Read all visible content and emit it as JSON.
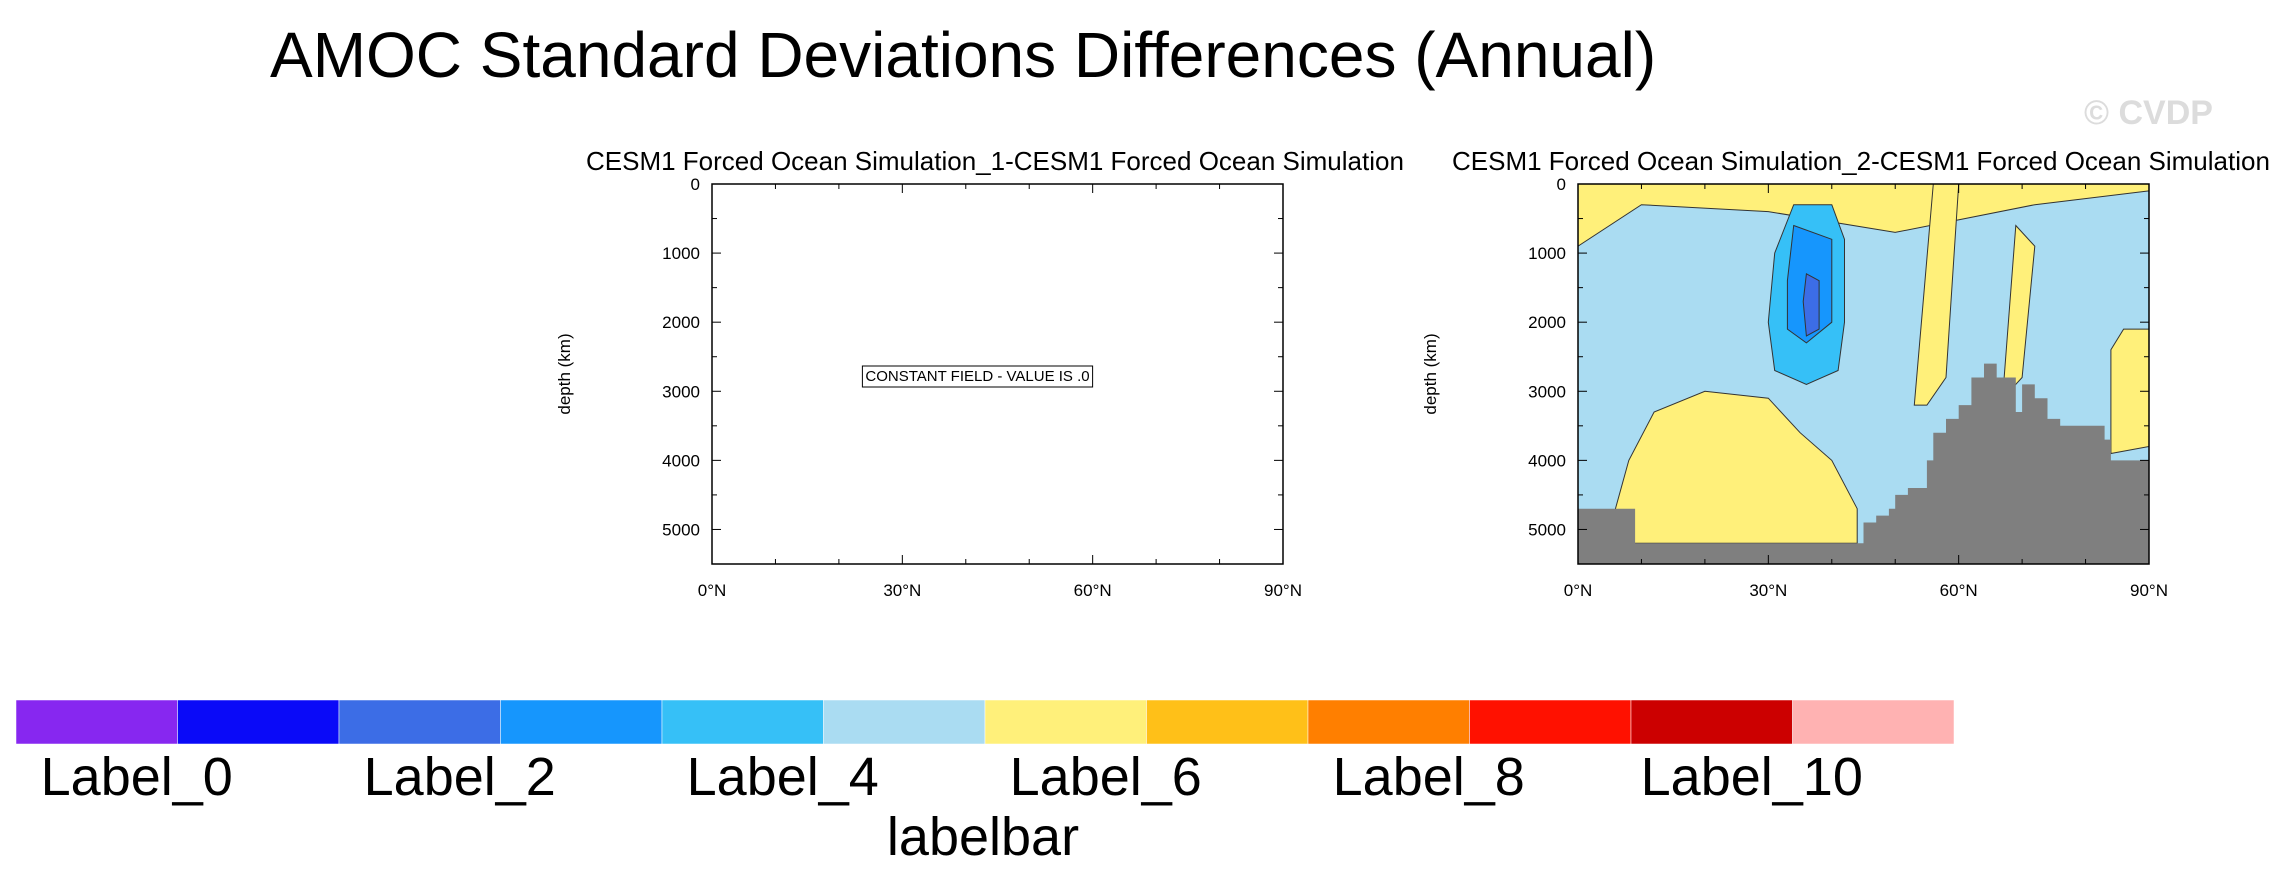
{
  "title": "AMOC Standard Deviations Differences (Annual)",
  "watermark": "© CVDP",
  "chart_data": [
    {
      "type": "contour",
      "title": "CESM1 Forced Ocean Simulation_1-CESM1 Forced Ocean Simulation",
      "ylabel": "depth (km)",
      "xlabel": "",
      "xlim": [
        0,
        90
      ],
      "ylim": [
        5500,
        0
      ],
      "xticks": [
        0,
        30,
        60,
        90
      ],
      "xticklabels": [
        "0°N",
        "30°N",
        "60°N",
        "90°N"
      ],
      "yticks": [
        0,
        1000,
        2000,
        3000,
        4000,
        5000
      ],
      "yticklabels": [
        "0",
        "1000",
        "2000",
        "3000",
        "4000",
        "5000"
      ],
      "annotation": "CONSTANT FIELD - VALUE IS .0"
    },
    {
      "type": "contour",
      "title": "CESM1 Forced Ocean Simulation_2-CESM1 Forced Ocean Simulation",
      "ylabel": "depth (km)",
      "xlabel": "",
      "xlim": [
        0,
        90
      ],
      "ylim": [
        5500,
        0
      ],
      "xticks": [
        0,
        30,
        60,
        90
      ],
      "xticklabels": [
        "0°N",
        "30°N",
        "60°N",
        "90°N"
      ],
      "yticks": [
        0,
        1000,
        2000,
        3000,
        4000,
        5000
      ],
      "yticklabels": [
        "0",
        "1000",
        "2000",
        "3000",
        "4000",
        "5000"
      ],
      "background_level": 5,
      "regions": [
        {
          "level": 6,
          "name": "top band",
          "points": [
            [
              0,
              0
            ],
            [
              90,
              0
            ],
            [
              90,
              100
            ],
            [
              72,
              300
            ],
            [
              50,
              700
            ],
            [
              30,
              400
            ],
            [
              10,
              300
            ],
            [
              0,
              900
            ]
          ]
        },
        {
          "level": 6,
          "name": "deep tongue",
          "points": [
            [
              5,
              5000
            ],
            [
              8,
              4000
            ],
            [
              12,
              3300
            ],
            [
              20,
              3000
            ],
            [
              30,
              3100
            ],
            [
              35,
              3600
            ],
            [
              40,
              4000
            ],
            [
              44,
              4700
            ],
            [
              44,
              5200
            ],
            [
              5,
              5200
            ]
          ]
        },
        {
          "level": 6,
          "name": "mid-lat strip",
          "points": [
            [
              56,
              0
            ],
            [
              60,
              0
            ],
            [
              58,
              2800
            ],
            [
              55,
              3200
            ],
            [
              53,
              3200
            ]
          ]
        },
        {
          "level": 6,
          "name": "high-lat strip",
          "points": [
            [
              69,
              600
            ],
            [
              72,
              900
            ],
            [
              70,
              2800
            ],
            [
              68,
              3000
            ],
            [
              67,
              3000
            ]
          ]
        },
        {
          "level": 6,
          "name": "polar strip",
          "points": [
            [
              86,
              2100
            ],
            [
              90,
              2100
            ],
            [
              90,
              3800
            ],
            [
              84,
              3900
            ],
            [
              84,
              2400
            ]
          ]
        },
        {
          "level": 4,
          "name": "blue core outer",
          "points": [
            [
              34,
              300
            ],
            [
              40,
              300
            ],
            [
              42,
              800
            ],
            [
              42,
              2000
            ],
            [
              41,
              2700
            ],
            [
              36,
              2900
            ],
            [
              31,
              2700
            ],
            [
              30,
              2000
            ],
            [
              31,
              1000
            ]
          ]
        },
        {
          "level": 3,
          "name": "blue core mid",
          "points": [
            [
              34,
              600
            ],
            [
              40,
              800
            ],
            [
              40,
              2000
            ],
            [
              36,
              2300
            ],
            [
              33,
              2100
            ],
            [
              33,
              1400
            ]
          ]
        },
        {
          "level": 2,
          "name": "blue core inner",
          "points": [
            [
              36,
              1300
            ],
            [
              38,
              1400
            ],
            [
              38,
              2100
            ],
            [
              36,
              2200
            ],
            [
              35.5,
              1700
            ]
          ]
        }
      ],
      "bathymetry": [
        [
          0,
          4700
        ],
        [
          9,
          4700
        ],
        [
          9,
          5200
        ],
        [
          45,
          5200
        ],
        [
          45,
          4900
        ],
        [
          47,
          4900
        ],
        [
          47,
          4800
        ],
        [
          49,
          4800
        ],
        [
          49,
          4700
        ],
        [
          50,
          4700
        ],
        [
          50,
          4500
        ],
        [
          52,
          4500
        ],
        [
          52,
          4400
        ],
        [
          55,
          4400
        ],
        [
          55,
          4000
        ],
        [
          56,
          4000
        ],
        [
          56,
          3600
        ],
        [
          58,
          3600
        ],
        [
          58,
          3400
        ],
        [
          60,
          3400
        ],
        [
          60,
          3200
        ],
        [
          62,
          3200
        ],
        [
          62,
          2800
        ],
        [
          64,
          2800
        ],
        [
          64,
          2600
        ],
        [
          66,
          2600
        ],
        [
          66,
          2800
        ],
        [
          69,
          2800
        ],
        [
          69,
          3300
        ],
        [
          70,
          3300
        ],
        [
          70,
          2900
        ],
        [
          72,
          2900
        ],
        [
          72,
          3100
        ],
        [
          74,
          3100
        ],
        [
          74,
          3400
        ],
        [
          76,
          3400
        ],
        [
          76,
          3500
        ],
        [
          83,
          3500
        ],
        [
          83,
          3700
        ],
        [
          84,
          3700
        ],
        [
          84,
          4000
        ],
        [
          86,
          4000
        ],
        [
          86,
          4000
        ],
        [
          90,
          4000
        ]
      ],
      "bathymetry_color": "#7f7f7f"
    }
  ],
  "labelbar": {
    "title": "labelbar",
    "colors": [
      "#8727f0",
      "#0a0af8",
      "#3c6de6",
      "#1696fd",
      "#36c0f7",
      "#aadcf2",
      "#fff07a",
      "#ffc018",
      "#ff7f00",
      "#ff1100",
      "#cc0000",
      "#ffb2b2"
    ],
    "labels": [
      "Label_0",
      "Label_2",
      "Label_4",
      "Label_6",
      "Label_8",
      "Label_10"
    ]
  }
}
